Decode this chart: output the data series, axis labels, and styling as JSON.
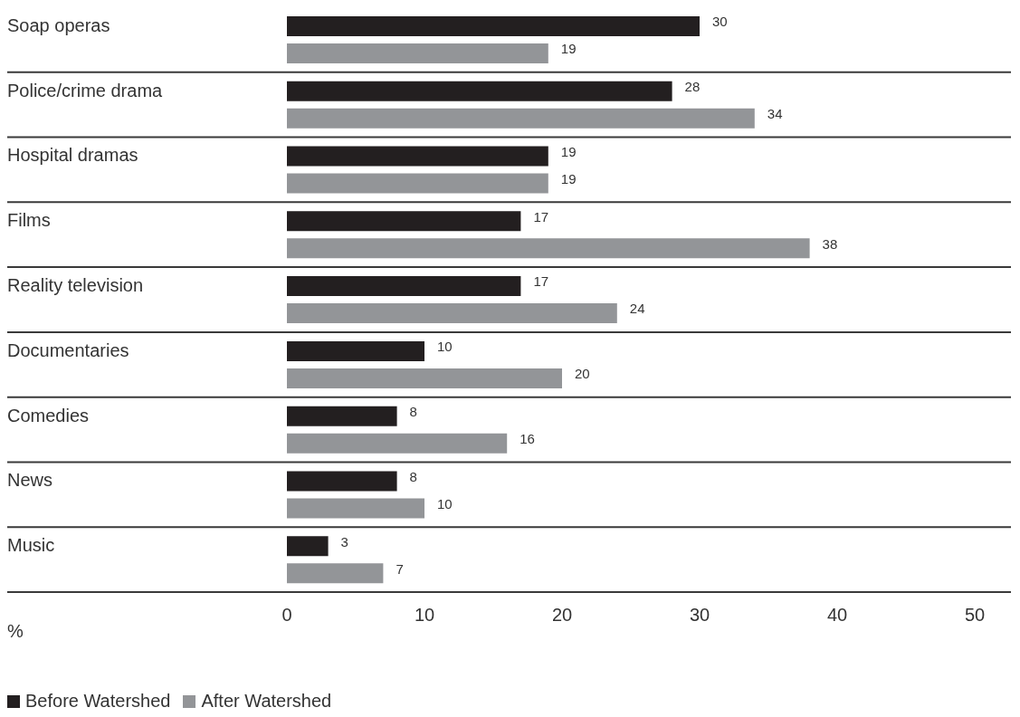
{
  "chart_data": {
    "type": "bar",
    "orientation": "horizontal",
    "xlabel": "%",
    "categories": [
      "Soap operas",
      "Police/crime drama",
      "Hospital dramas",
      "Films",
      "Reality television",
      "Documentaries",
      "Comedies",
      "News",
      "Music"
    ],
    "series": [
      {
        "name": "Before Watershed",
        "color": "#231f20",
        "values": [
          30,
          28,
          19,
          17,
          17,
          10,
          8,
          8,
          3
        ]
      },
      {
        "name": "After Watershed",
        "color": "#939598",
        "values": [
          19,
          34,
          19,
          38,
          24,
          20,
          16,
          10,
          7
        ]
      }
    ],
    "xlim": [
      0,
      50
    ],
    "xticks": [
      0,
      10,
      20,
      30,
      40,
      50
    ],
    "grid": "y",
    "data_labels": true,
    "legend": "bottom left"
  }
}
